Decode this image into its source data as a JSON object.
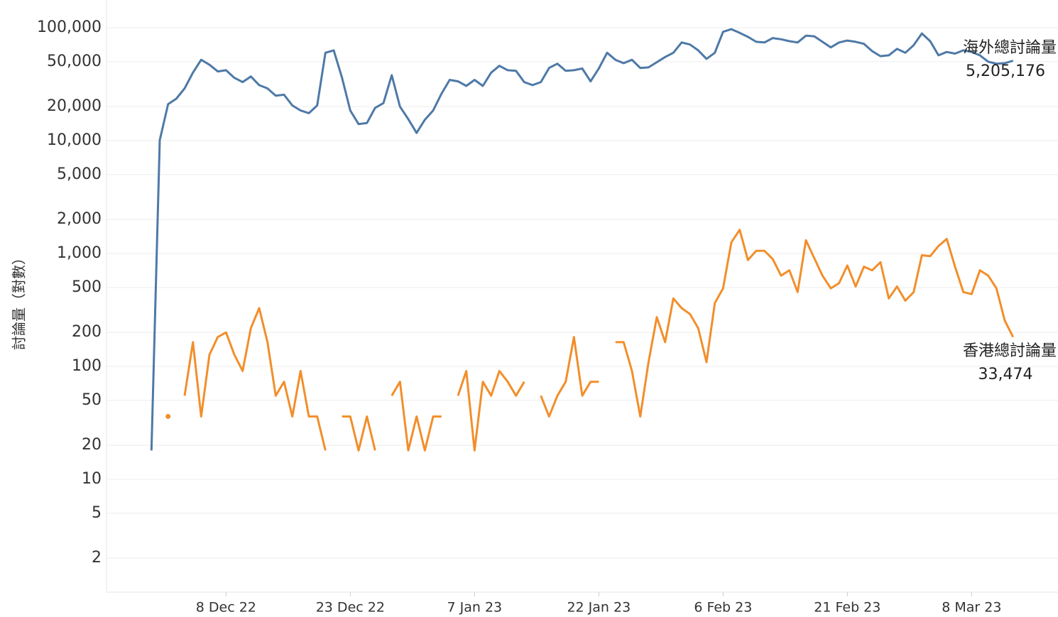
{
  "chart_data": {
    "type": "line",
    "y_label": "討論量（對數）",
    "log_scale": true,
    "grid": true,
    "annotations": [
      "海外總討論量",
      "5,205,176",
      "香港總討論量",
      "33,474"
    ],
    "xlim": [
      "2022-11-24",
      "2023-03-18"
    ],
    "xticks": [
      {
        "value": "2022-12-08",
        "label": "8 Dec 22"
      },
      {
        "value": "2022-12-23",
        "label": "23 Dec 22"
      },
      {
        "value": "2023-01-07",
        "label": "7 Jan 23"
      },
      {
        "value": "2023-01-22",
        "label": "22 Jan 23"
      },
      {
        "value": "2023-02-06",
        "label": "6 Feb 23"
      },
      {
        "value": "2023-02-21",
        "label": "21 Feb 23"
      },
      {
        "value": "2023-03-08",
        "label": "8 Mar 23"
      }
    ],
    "ylim": [
      1,
      170000
    ],
    "yticks": [
      2,
      5,
      10,
      20,
      50,
      100,
      200,
      500,
      {
        "value": 1000,
        "label": "1,000"
      },
      {
        "value": 2000,
        "label": "2,000"
      },
      {
        "value": 5000,
        "label": "5,000"
      },
      {
        "value": 10000,
        "label": "10,000"
      },
      {
        "value": 20000,
        "label": "20,000"
      },
      {
        "value": 50000,
        "label": "50,000"
      },
      {
        "value": 100000,
        "label": "100,000"
      }
    ],
    "x": [
      "2022-11-29",
      "2022-11-30",
      "2022-12-01",
      "2022-12-02",
      "2022-12-03",
      "2022-12-04",
      "2022-12-05",
      "2022-12-06",
      "2022-12-07",
      "2022-12-08",
      "2022-12-09",
      "2022-12-10",
      "2022-12-11",
      "2022-12-12",
      "2022-12-13",
      "2022-12-14",
      "2022-12-15",
      "2022-12-16",
      "2022-12-17",
      "2022-12-18",
      "2022-12-19",
      "2022-12-20",
      "2022-12-21",
      "2022-12-22",
      "2022-12-23",
      "2022-12-24",
      "2022-12-25",
      "2022-12-26",
      "2022-12-27",
      "2022-12-28",
      "2022-12-29",
      "2022-12-30",
      "2022-12-31",
      "2023-01-01",
      "2023-01-02",
      "2023-01-03",
      "2023-01-04",
      "2023-01-05",
      "2023-01-06",
      "2023-01-07",
      "2023-01-08",
      "2023-01-09",
      "2023-01-10",
      "2023-01-11",
      "2023-01-12",
      "2023-01-13",
      "2023-01-14",
      "2023-01-15",
      "2023-01-16",
      "2023-01-17",
      "2023-01-18",
      "2023-01-19",
      "2023-01-20",
      "2023-01-21",
      "2023-01-22",
      "2023-01-23",
      "2023-01-24",
      "2023-01-25",
      "2023-01-26",
      "2023-01-27",
      "2023-01-28",
      "2023-01-29",
      "2023-01-30",
      "2023-01-31",
      "2023-02-01",
      "2023-02-02",
      "2023-02-03",
      "2023-02-04",
      "2023-02-05",
      "2023-02-06",
      "2023-02-07",
      "2023-02-08",
      "2023-02-09",
      "2023-02-10",
      "2023-02-11",
      "2023-02-12",
      "2023-02-13",
      "2023-02-14",
      "2023-02-15",
      "2023-02-16",
      "2023-02-17",
      "2023-02-18",
      "2023-02-19",
      "2023-02-20",
      "2023-02-21",
      "2023-02-22",
      "2023-02-23",
      "2023-02-24",
      "2023-02-25",
      "2023-02-26",
      "2023-02-27",
      "2023-02-28",
      "2023-03-01",
      "2023-03-02",
      "2023-03-03",
      "2023-03-04",
      "2023-03-05",
      "2023-03-06",
      "2023-03-07",
      "2023-03-08",
      "2023-03-09",
      "2023-03-10",
      "2023-03-11",
      "2023-03-12",
      "2023-03-13"
    ],
    "series": [
      {
        "name": "海外總討論量",
        "color": "#4e79a7",
        "values": [
          18,
          10100,
          21000,
          23500,
          29000,
          40000,
          52000,
          47000,
          41000,
          42000,
          36000,
          33000,
          37000,
          31000,
          29000,
          25000,
          25500,
          20500,
          18500,
          17500,
          20500,
          60000,
          63000,
          36000,
          18500,
          14000,
          14300,
          19500,
          21500,
          38000,
          20000,
          15500,
          11700,
          15300,
          18500,
          26000,
          34500,
          33500,
          30500,
          34500,
          30500,
          40000,
          46000,
          42000,
          41500,
          33000,
          31000,
          33000,
          44000,
          48000,
          41500,
          42000,
          43500,
          33500,
          43500,
          60000,
          52000,
          48500,
          52000,
          44000,
          44500,
          49500,
          55000,
          60000,
          74000,
          71000,
          63000,
          53000,
          60000,
          92000,
          97000,
          90000,
          83000,
          75000,
          74000,
          81000,
          79000,
          76000,
          74000,
          85000,
          84000,
          75000,
          67000,
          74000,
          77000,
          75000,
          72000,
          62000,
          56000,
          57000,
          65000,
          60000,
          70000,
          89000,
          76000,
          57000,
          61000,
          59000,
          63000,
          61000,
          57000,
          50000,
          48000,
          48500,
          51000
        ]
      },
      {
        "name": "香港總討論量",
        "color": "#f28e2b",
        "values": [
          null,
          null,
          36,
          null,
          55,
          164,
          36,
          127,
          182,
          200,
          127,
          91,
          218,
          328,
          164,
          55,
          73,
          36,
          91,
          36,
          36,
          18,
          null,
          36,
          36,
          18,
          36,
          18,
          null,
          55,
          73,
          18,
          36,
          18,
          36,
          36,
          null,
          55,
          91,
          18,
          73,
          55,
          91,
          73,
          55,
          73,
          null,
          55,
          36,
          55,
          73,
          182,
          55,
          73,
          73,
          null,
          164,
          164,
          91,
          36,
          109,
          273,
          164,
          400,
          328,
          291,
          218,
          109,
          364,
          491,
          1256,
          1620,
          874,
          1056,
          1056,
          892,
          637,
          710,
          455,
          1310,
          910,
          637,
          491,
          546,
          783,
          510,
          764,
          710,
          837,
          400,
          510,
          382,
          455,
          965,
          947,
          1165,
          1347,
          764,
          455,
          437,
          710,
          637,
          491,
          255,
          182
        ]
      }
    ]
  }
}
